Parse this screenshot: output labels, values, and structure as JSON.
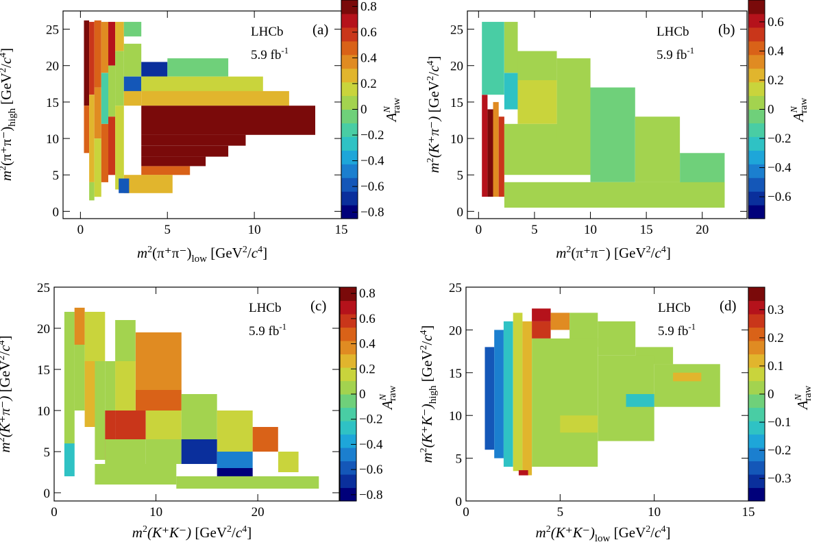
{
  "colors": {
    "palette": [
      "#00007a",
      "#0a2f9c",
      "#1457b8",
      "#1b7fcf",
      "#1ea6d9",
      "#2fc2c4",
      "#49cda4",
      "#6fd07a",
      "#a3d34f",
      "#c9d43c",
      "#e1b52d",
      "#e08b22",
      "#d96218",
      "#c9361a",
      "#b5121b",
      "#7a0a0a"
    ],
    "frame": "#000000",
    "background": "#ffffff"
  },
  "chart_data": [
    {
      "id": "a",
      "type": "heatmap",
      "panel_tag": "(a)",
      "experiment": "LHCb",
      "luminosity": "5.9 fb",
      "luminosity_sup": "-1",
      "x_label": {
        "pre": "m",
        "sup": "2",
        "mid": "(π⁺π⁻)",
        "sub": "low",
        "unit": " [GeV",
        "unit_sup": "2",
        "unit_mid": "/",
        "unit_it": "c",
        "unit_sup2": "4",
        "unit_end": "]"
      },
      "y_label": {
        "pre": "m",
        "sup": "2",
        "mid": "(π⁺π⁻)",
        "sub": "high",
        "unit": " [GeV",
        "unit_sup": "2",
        "unit_mid": "/",
        "unit_it": "c",
        "unit_sup2": "4",
        "unit_end": "]"
      },
      "z_label": {
        "main": "A",
        "sup": "N",
        "sub": "raw"
      },
      "xlim": [
        -1,
        15
      ],
      "ylim": [
        -1,
        27.5
      ],
      "x_ticks": [
        0,
        5,
        10,
        15
      ],
      "y_ticks": [
        0,
        5,
        10,
        15,
        20,
        25
      ],
      "z_range": [
        -0.85,
        0.85
      ],
      "z_ticks": [
        0.8,
        0.6,
        0.4,
        0.2,
        0,
        -0.2,
        -0.4,
        -0.6,
        -0.8
      ],
      "z_tick_labels": [
        "0.8",
        "0.6",
        "0.4",
        "0.2",
        "0",
        "−0.2",
        "−0.4",
        "−0.6",
        "−0.8"
      ],
      "bins": [
        [
          0.2,
          0.5,
          14.5,
          26.2,
          0.75
        ],
        [
          0.2,
          0.5,
          8,
          14.5,
          0.45
        ],
        [
          0.5,
          0.8,
          16,
          26,
          0.6
        ],
        [
          0.5,
          0.8,
          4,
          16,
          0.3
        ],
        [
          0.5,
          0.8,
          1.5,
          4,
          0.0
        ],
        [
          0.8,
          1.2,
          17,
          26.2,
          0.5
        ],
        [
          0.8,
          1.2,
          10,
          17,
          0.35
        ],
        [
          0.8,
          1.2,
          2,
          10,
          0.2
        ],
        [
          1.2,
          1.6,
          19,
          26,
          0.4
        ],
        [
          1.2,
          1.6,
          12,
          19,
          -0.2
        ],
        [
          1.2,
          1.6,
          4,
          12,
          0.45
        ],
        [
          1.6,
          2.0,
          20,
          26,
          0.7
        ],
        [
          1.6,
          2.0,
          13,
          20,
          0.1
        ],
        [
          1.6,
          2.0,
          5,
          13,
          0.55
        ],
        [
          2.0,
          2.5,
          22,
          26,
          0.3
        ],
        [
          2.0,
          2.5,
          14.5,
          22,
          0.05
        ],
        [
          2.0,
          2.5,
          3,
          14.5,
          0.2
        ],
        [
          2.5,
          3.5,
          24,
          26,
          -0.1
        ],
        [
          2.5,
          3.5,
          18.5,
          23,
          0.0
        ],
        [
          2.5,
          3.5,
          16.5,
          18.5,
          -0.6
        ],
        [
          2.5,
          3.5,
          14.5,
          16.5,
          0.25
        ],
        [
          3.5,
          5.0,
          18.5,
          20.5,
          -0.7
        ],
        [
          3.5,
          5.0,
          16.5,
          18.5,
          0.0
        ],
        [
          5,
          8.5,
          18.5,
          21,
          -0.05
        ],
        [
          3.5,
          10.5,
          16.5,
          18.5,
          0.15
        ],
        [
          3.5,
          12,
          14.5,
          16.5,
          0.25
        ],
        [
          3.5,
          13.5,
          12.5,
          14.5,
          0.75
        ],
        [
          3.5,
          13.5,
          10.5,
          12.5,
          0.8
        ],
        [
          3.5,
          9.5,
          9,
          10.5,
          0.85
        ],
        [
          3.5,
          8.5,
          7.5,
          9,
          0.75
        ],
        [
          3.5,
          7.2,
          6.2,
          7.5,
          0.75
        ],
        [
          3.5,
          6.3,
          5,
          6.2,
          0.45
        ],
        [
          2.5,
          5.3,
          2.5,
          5,
          0.25
        ],
        [
          2.2,
          2.8,
          2.5,
          4.5,
          -0.55
        ]
      ]
    },
    {
      "id": "b",
      "type": "heatmap",
      "panel_tag": "(b)",
      "experiment": "LHCb",
      "luminosity": "5.9 fb",
      "luminosity_sup": "-1",
      "x_label": {
        "pre": "m",
        "sup": "2",
        "mid": "(π⁺π⁻)",
        "sub": "",
        "unit": " [GeV",
        "unit_sup": "2",
        "unit_mid": "/",
        "unit_it": "c",
        "unit_sup2": "4",
        "unit_end": "]"
      },
      "y_label": {
        "pre": "m",
        "sup": "2",
        "mid": "(K⁺π⁻)",
        "sub": "",
        "unit": " [GeV",
        "unit_sup": "2",
        "unit_mid": "/",
        "unit_it": "c",
        "unit_sup2": "4",
        "unit_end": "]"
      },
      "z_label": {
        "main": "A",
        "sup": "N",
        "sub": "raw"
      },
      "xlim": [
        -1,
        24
      ],
      "ylim": [
        -1,
        27.5
      ],
      "x_ticks": [
        0,
        5,
        10,
        15,
        20
      ],
      "y_ticks": [
        0,
        5,
        10,
        15,
        20,
        25
      ],
      "z_range": [
        -0.75,
        0.75
      ],
      "z_ticks": [
        0.6,
        0.4,
        0.2,
        0,
        -0.2,
        -0.4,
        -0.6
      ],
      "z_tick_labels": [
        "0.6",
        "0.4",
        "0.2",
        "0",
        "−0.2",
        "−0.4",
        "−0.6"
      ],
      "bins": [
        [
          0.3,
          0.8,
          2,
          16,
          0.6
        ],
        [
          0.8,
          1.3,
          2,
          14,
          0.7
        ],
        [
          1.3,
          1.8,
          2,
          15,
          0.3
        ],
        [
          1.8,
          2.3,
          2,
          13,
          0.5
        ],
        [
          0.3,
          2.3,
          16,
          26,
          -0.1
        ],
        [
          2.3,
          3.5,
          19,
          26,
          0.0
        ],
        [
          2.3,
          3.5,
          14,
          19,
          -0.2
        ],
        [
          3.5,
          7,
          18,
          22,
          0.0
        ],
        [
          3.5,
          7,
          12,
          18,
          0.15
        ],
        [
          2.3,
          10,
          5,
          12,
          0.05
        ],
        [
          7,
          10,
          10,
          21,
          0.0
        ],
        [
          10,
          14,
          4,
          17,
          -0.05
        ],
        [
          14,
          18,
          4,
          13,
          0.0
        ],
        [
          18,
          22,
          1.5,
          8,
          -0.05
        ],
        [
          2.3,
          22,
          0.5,
          4,
          0.05
        ]
      ]
    },
    {
      "id": "c",
      "type": "heatmap",
      "panel_tag": "(c)",
      "experiment": "LHCb",
      "luminosity": "5.9 fb",
      "luminosity_sup": "-1",
      "x_label": {
        "pre": "m",
        "sup": "2",
        "mid": "(K⁺K⁻)",
        "sub": "",
        "unit": " [GeV",
        "unit_sup": "2",
        "unit_mid": "/",
        "unit_it": "c",
        "unit_sup2": "4",
        "unit_end": "]"
      },
      "y_label": {
        "pre": "m",
        "sup": "2",
        "mid": "(K⁺π⁻)",
        "sub": "",
        "unit": " [GeV",
        "unit_sup": "2",
        "unit_mid": "/",
        "unit_it": "c",
        "unit_sup2": "4",
        "unit_end": "]"
      },
      "z_label": {
        "main": "A",
        "sup": "N",
        "sub": "raw"
      },
      "xlim": [
        0,
        28
      ],
      "ylim": [
        -1,
        25
      ],
      "x_ticks": [
        0,
        10,
        20
      ],
      "y_ticks": [
        0,
        5,
        10,
        15,
        20,
        25
      ],
      "z_range": [
        -0.85,
        0.85
      ],
      "z_ticks": [
        0.8,
        0.6,
        0.4,
        0.2,
        0,
        -0.2,
        -0.4,
        -0.6,
        -0.8
      ],
      "z_tick_labels": [
        "0.8",
        "0.6",
        "0.4",
        "0.2",
        "0",
        "−0.2",
        "−0.4",
        "−0.6",
        "−0.8"
      ],
      "bins": [
        [
          1,
          2,
          6,
          22,
          0.0
        ],
        [
          1,
          2,
          2,
          6,
          -0.3
        ],
        [
          2,
          3,
          18,
          22.5,
          0.35
        ],
        [
          2,
          3,
          10,
          18,
          0.0
        ],
        [
          3,
          4,
          16,
          22,
          0.2
        ],
        [
          3,
          4,
          8,
          16,
          0.3
        ],
        [
          4,
          5,
          16,
          22,
          0.2
        ],
        [
          4,
          5,
          4,
          16,
          0.1
        ],
        [
          5,
          6,
          10,
          16,
          0.05
        ],
        [
          5,
          6,
          4,
          10,
          0.55
        ],
        [
          6,
          8,
          16,
          21,
          0.0
        ],
        [
          6,
          8,
          10,
          16,
          0.2
        ],
        [
          8,
          12.5,
          12.5,
          19.5,
          0.4
        ],
        [
          8,
          12.5,
          10,
          12.5,
          0.5
        ],
        [
          6,
          9,
          6.5,
          10,
          0.55
        ],
        [
          9,
          12.5,
          6.5,
          10,
          0.2
        ],
        [
          12.5,
          16,
          6.5,
          12,
          0.05
        ],
        [
          16,
          19.5,
          5,
          10,
          0.2
        ],
        [
          19.5,
          22,
          5,
          8,
          0.45
        ],
        [
          22,
          24,
          2.5,
          5,
          0.2
        ],
        [
          5,
          9,
          3,
          6.5,
          0.1
        ],
        [
          9,
          12.5,
          3.5,
          6.5,
          0.0
        ],
        [
          12.5,
          16,
          3.5,
          6.5,
          -0.7
        ],
        [
          16,
          19.5,
          3,
          5,
          -0.5
        ],
        [
          16,
          19.5,
          1.5,
          3,
          -0.85
        ],
        [
          4,
          12,
          1,
          3.5,
          0.1
        ],
        [
          12,
          26,
          0.5,
          2,
          0.05
        ]
      ]
    },
    {
      "id": "d",
      "type": "heatmap",
      "panel_tag": "(d)",
      "experiment": "LHCb",
      "luminosity": "5.9 fb",
      "luminosity_sup": "-1",
      "x_label": {
        "pre": "m",
        "sup": "2",
        "mid": "(K⁺K⁻)",
        "sub": "low",
        "unit": " [GeV",
        "unit_sup": "2",
        "unit_mid": "/",
        "unit_it": "c",
        "unit_sup2": "4",
        "unit_end": "]"
      },
      "y_label": {
        "pre": "m",
        "sup": "2",
        "mid": "(K⁺K⁻)",
        "sub": "high",
        "unit": " [GeV",
        "unit_sup": "2",
        "unit_mid": "/",
        "unit_it": "c",
        "unit_sup2": "4",
        "unit_end": "]"
      },
      "z_label": {
        "main": "A",
        "sup": "N",
        "sub": "raw"
      },
      "xlim": [
        0,
        15
      ],
      "ylim": [
        0,
        25
      ],
      "x_ticks": [
        0,
        5,
        10,
        15
      ],
      "y_ticks": [
        0,
        5,
        10,
        15,
        20,
        25
      ],
      "z_range": [
        -0.38,
        0.38
      ],
      "z_ticks": [
        0.3,
        0.2,
        0.1,
        0,
        -0.1,
        -0.2,
        -0.3
      ],
      "z_tick_labels": [
        "0.3",
        "0.2",
        "0.1",
        "0",
        "−0.1",
        "−0.2",
        "−0.3"
      ],
      "bins": [
        [
          1,
          1.5,
          6,
          18,
          -0.25
        ],
        [
          1.5,
          2,
          5,
          20,
          -0.2
        ],
        [
          2,
          2.5,
          4,
          21,
          -0.1
        ],
        [
          2.5,
          3,
          3.5,
          22,
          0.05
        ],
        [
          3,
          3.5,
          3,
          21,
          0.1
        ],
        [
          3.5,
          4.5,
          21,
          22.5,
          0.3
        ],
        [
          3.5,
          4.5,
          19,
          21,
          0.25
        ],
        [
          4.5,
          5.5,
          20,
          22,
          0.15
        ],
        [
          5.5,
          7,
          18,
          22,
          0.0
        ],
        [
          7,
          9,
          17,
          21,
          0.0
        ],
        [
          9,
          11,
          16,
          18,
          0.0
        ],
        [
          3.5,
          7,
          4,
          19,
          0.0
        ],
        [
          7,
          10,
          7,
          17,
          0.02
        ],
        [
          10,
          13.5,
          11,
          16,
          0.0
        ],
        [
          11,
          12.5,
          14,
          15,
          0.1
        ],
        [
          8.5,
          10,
          11,
          12.5,
          -0.1
        ],
        [
          5,
          7,
          8,
          10,
          0.05
        ],
        [
          2.8,
          3.3,
          3,
          3.6,
          0.3
        ]
      ]
    }
  ]
}
